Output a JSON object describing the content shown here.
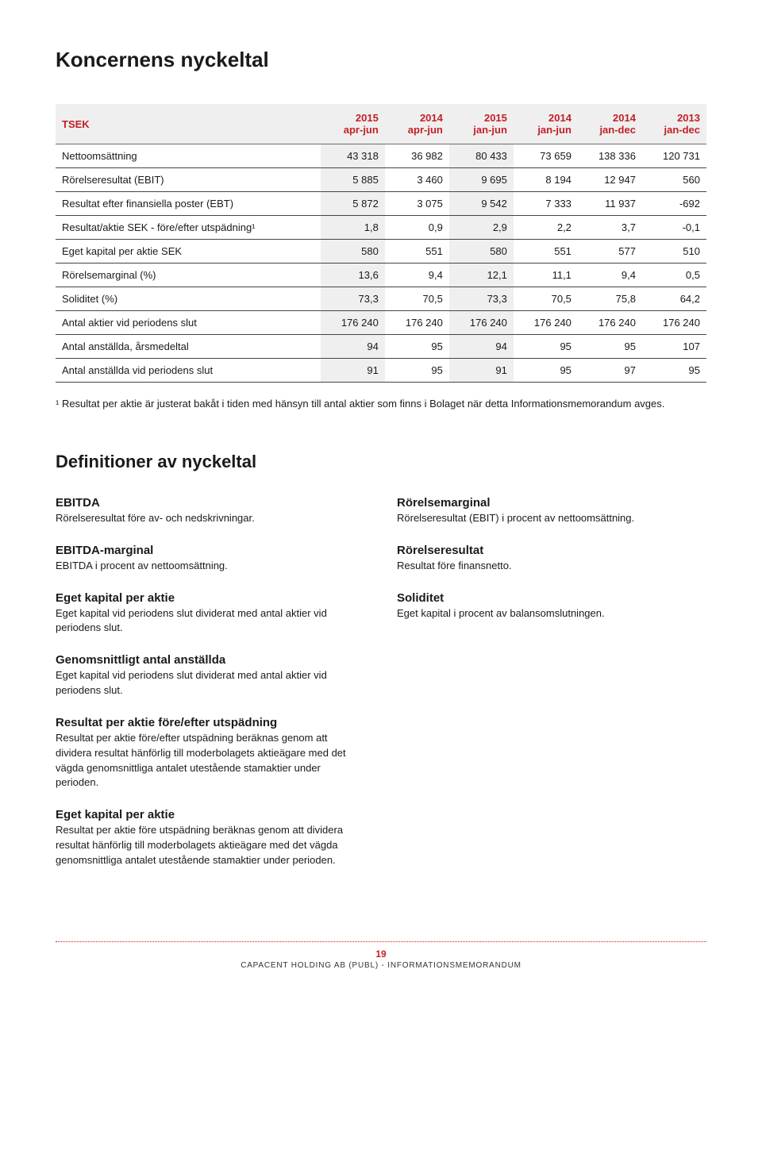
{
  "title": "Koncernens nyckeltal",
  "table": {
    "header_row_label": "TSEK",
    "columns": [
      "2015\napr-jun",
      "2014\napr-jun",
      "2015\njan-jun",
      "2014\njan-jun",
      "2014\njan-dec",
      "2013\njan-dec"
    ],
    "rows": [
      {
        "label": "Nettoomsättning",
        "values": [
          "43 318",
          "36 982",
          "80 433",
          "73 659",
          "138 336",
          "120 731"
        ]
      },
      {
        "label": "Rörelseresultat (EBIT)",
        "values": [
          "5 885",
          "3 460",
          "9 695",
          "8 194",
          "12 947",
          "560"
        ]
      },
      {
        "label": "Resultat efter finansiella poster (EBT)",
        "values": [
          "5 872",
          "3 075",
          "9 542",
          "7 333",
          "11 937",
          "-692"
        ]
      },
      {
        "label": "Resultat/aktie SEK - före/efter utspädning¹",
        "values": [
          "1,8",
          "0,9",
          "2,9",
          "2,2",
          "3,7",
          "-0,1"
        ]
      },
      {
        "label": "Eget kapital per aktie SEK",
        "values": [
          "580",
          "551",
          "580",
          "551",
          "577",
          "510"
        ]
      },
      {
        "label": "Rörelsemarginal (%)",
        "values": [
          "13,6",
          "9,4",
          "12,1",
          "11,1",
          "9,4",
          "0,5"
        ]
      },
      {
        "label": "Soliditet (%)",
        "values": [
          "73,3",
          "70,5",
          "73,3",
          "70,5",
          "75,8",
          "64,2"
        ]
      },
      {
        "label": "Antal aktier vid periodens slut",
        "values": [
          "176 240",
          "176 240",
          "176 240",
          "176 240",
          "176 240",
          "176 240"
        ]
      },
      {
        "label": "Antal anställda, årsmedeltal",
        "values": [
          "94",
          "95",
          "94",
          "95",
          "95",
          "107"
        ]
      },
      {
        "label": "Antal anställda vid periodens slut",
        "values": [
          "91",
          "95",
          "91",
          "95",
          "97",
          "95"
        ]
      }
    ],
    "shaded_value_cols": [
      0,
      2
    ]
  },
  "footnote": "¹ Resultat per aktie är justerat bakåt i tiden med hänsyn till antal aktier som finns i Bolaget när detta Informationsmemorandum avges.",
  "definitions_title": "Definitioner av nyckeltal",
  "definitions_left": [
    {
      "term": "EBITDA",
      "desc": "Rörelseresultat före av- och nedskrivningar."
    },
    {
      "term": "EBITDA-marginal",
      "desc": "EBITDA i procent av nettoomsättning."
    },
    {
      "term": "Eget kapital per aktie",
      "desc": "Eget kapital vid periodens slut dividerat med antal aktier vid periodens slut."
    },
    {
      "term": "Genomsnittligt antal anställda",
      "desc": "Eget kapital vid periodens slut dividerat med antal aktier vid periodens slut."
    },
    {
      "term": "Resultat per aktie före/efter utspädning",
      "desc": "Resultat per aktie före/efter utspädning beräknas genom att dividera resultat hänförlig till moderbolagets aktieägare med det vägda genomsnittliga antalet utestående stamaktier under perioden."
    },
    {
      "term": "Eget kapital per aktie",
      "desc": "Resultat per aktie före utspädning beräknas genom att dividera resultat hänförlig till moderbolagets aktieägare med det vägda genomsnittliga antalet utestående stamaktier under perioden."
    }
  ],
  "definitions_right": [
    {
      "term": "Rörelsemarginal",
      "desc": "Rörelseresultat (EBIT) i procent av nettoomsättning."
    },
    {
      "term": "Rörelseresultat",
      "desc": "Resultat före finansnetto."
    },
    {
      "term": "Soliditet",
      "desc": "Eget kapital i procent av balansomslutningen."
    }
  ],
  "footer": {
    "page_number": "19",
    "text": "CAPACENT HOLDING AB (PUBL) - INFORMATIONSMEMORANDUM"
  },
  "colors": {
    "accent": "#c22026",
    "shade_bg": "#f0efef",
    "border": "#444444",
    "text": "#1a1a1a"
  }
}
